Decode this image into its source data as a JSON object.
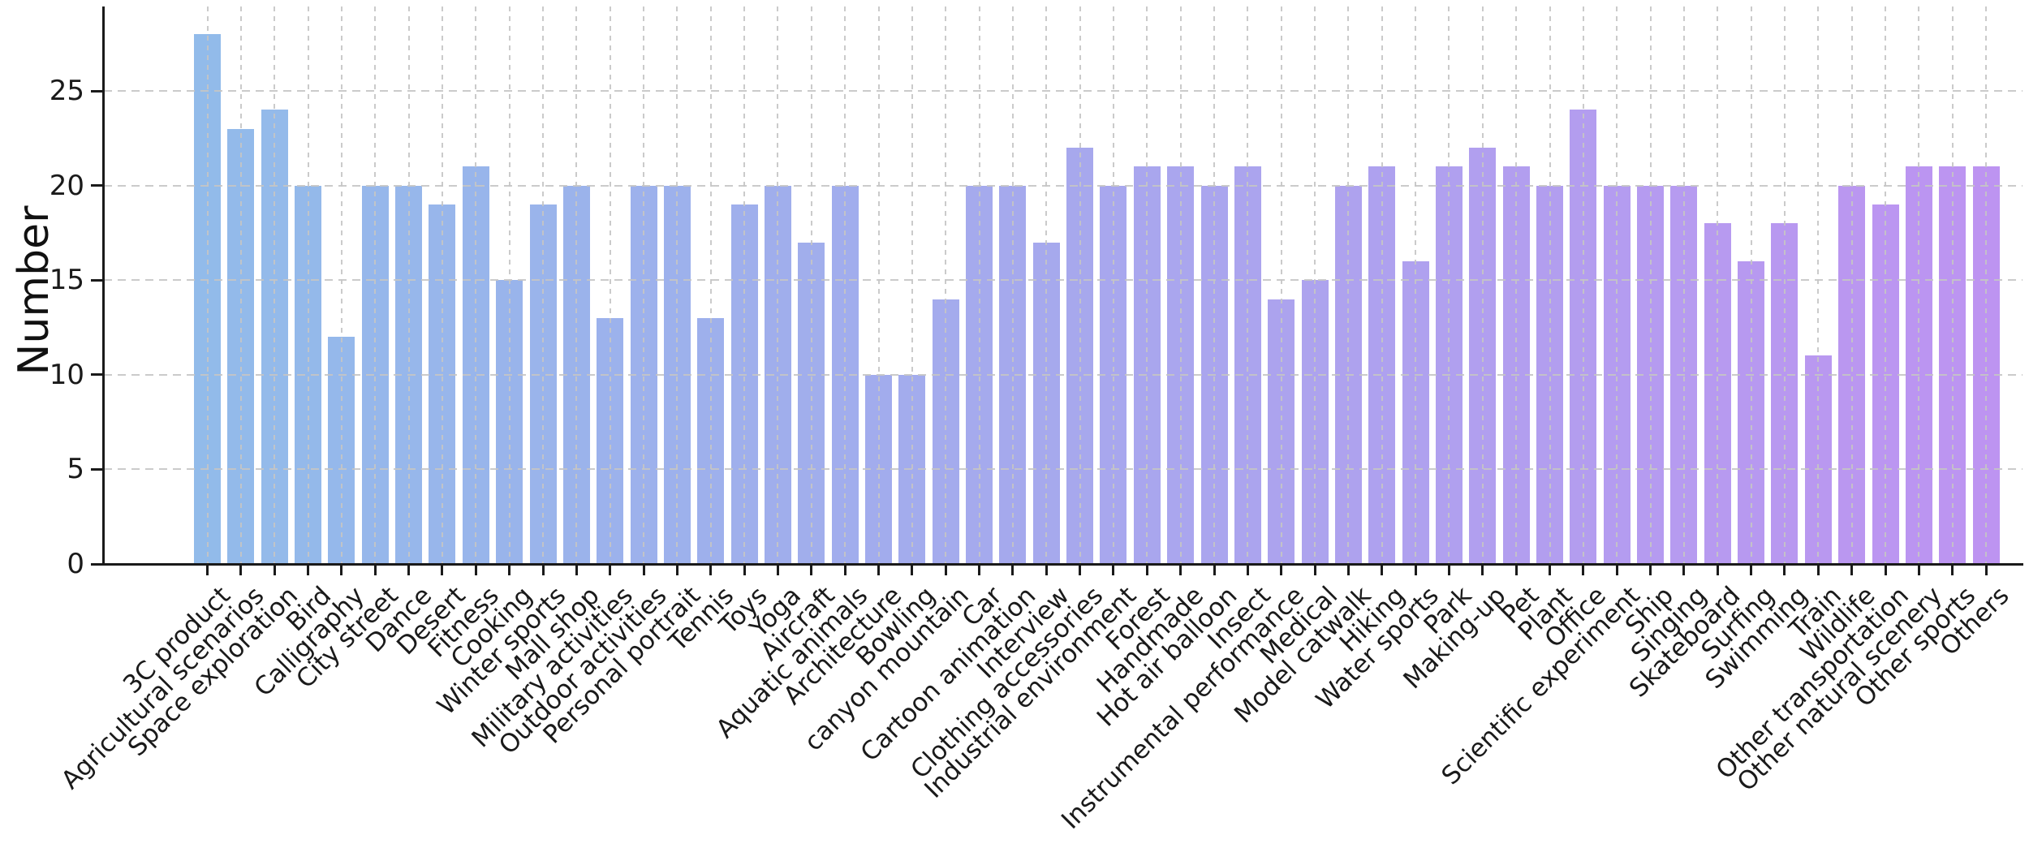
{
  "chart_data": {
    "type": "bar",
    "title": "",
    "xlabel": "",
    "ylabel": "Number",
    "ylim": [
      0,
      29.2
    ],
    "yticks": [
      0,
      5,
      10,
      15,
      20,
      25
    ],
    "grid": "dashed-both-axes",
    "legend": "none",
    "bar_color_start": "#92bbea",
    "bar_color_end": "#bd94f1",
    "categories": [
      "3C product",
      "Agricultural scenarios",
      "Space exploration",
      "Bird",
      "Calligraphy",
      "City street",
      "Dance",
      "Desert",
      "Fitness",
      "Cooking",
      "Winter sports",
      "Mall shop",
      "Military activities",
      "Outdoor activities",
      "Personal portrait",
      "Tennis",
      "Toys",
      "Yoga",
      "Aircraft",
      "Aquatic animals",
      "Architecture",
      "Bowling",
      "canyon mountain",
      "Car",
      "Cartoon animation",
      "Interview",
      "Clothing accessories",
      "Industrial environment",
      "Forest",
      "Handmade",
      "Hot air balloon",
      "Insect",
      "Instrumental performance",
      "Medical",
      "Model catwalk",
      "Hiking",
      "Water sports",
      "Park",
      "Making-up",
      "Pet",
      "Plant",
      "Office",
      "Scientific experiment",
      "Ship",
      "Singing",
      "Skateboard",
      "Surfing",
      "Swimming",
      "Train",
      "Wildlife",
      "Other transportation",
      "Other natural scenery",
      "Other sports",
      "Others"
    ],
    "values": [
      28,
      23,
      24,
      20,
      12,
      20,
      20,
      19,
      21,
      15,
      19,
      20,
      13,
      20,
      20,
      13,
      19,
      20,
      17,
      20,
      10,
      10,
      14,
      20,
      20,
      17,
      22,
      20,
      21,
      21,
      20,
      21,
      14,
      15,
      20,
      21,
      16,
      21,
      22,
      21,
      20,
      24,
      20,
      20,
      20,
      18,
      16,
      18,
      11,
      20,
      19,
      21,
      21,
      21
    ]
  }
}
